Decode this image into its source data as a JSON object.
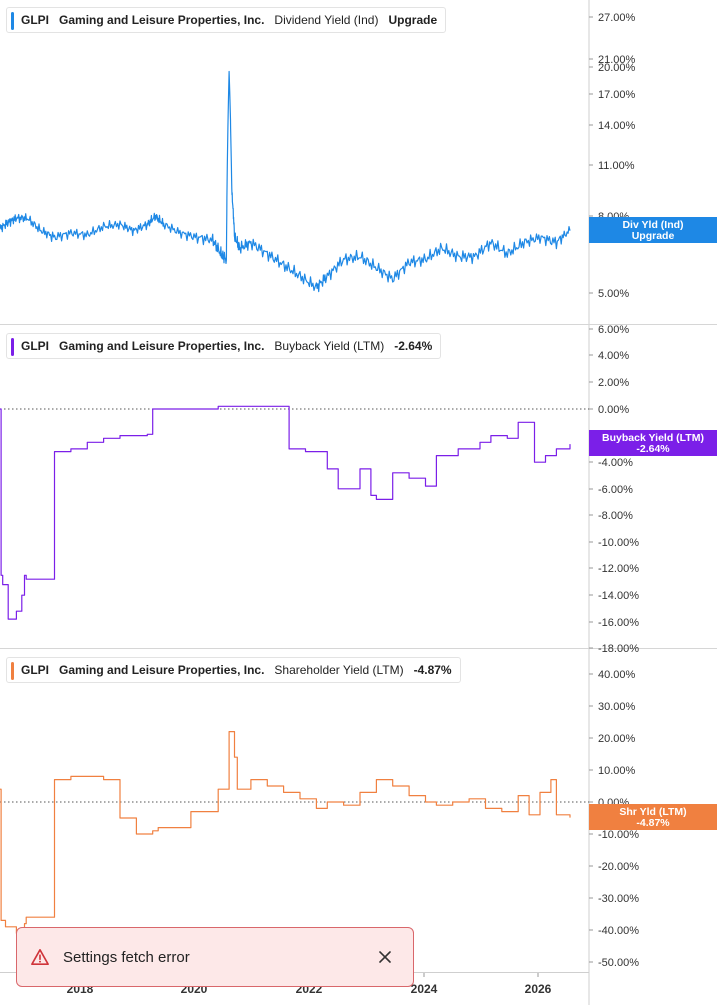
{
  "chart_data": [
    {
      "type": "line",
      "ticker": "GLPI",
      "company": "Gaming and Leisure Properties, Inc.",
      "metric": "Dividend Yield (Ind)",
      "legend_value": "Upgrade",
      "color": "#1e88e5",
      "y_ticks": [
        "27.00%",
        "21.00%",
        "20.00%",
        "17.00%",
        "14.00%",
        "11.00%",
        "8.00%",
        "7.00%",
        "5.00%"
      ],
      "tag": [
        "Div Yld (Ind)",
        "Upgrade"
      ],
      "x_range": [
        2016.0,
        2026.45
      ],
      "series": [
        {
          "x": [
            2016.0,
            2016.15,
            2016.3,
            2016.5,
            2016.75,
            2017.0,
            2017.3,
            2017.6,
            2017.9,
            2018.2,
            2018.45,
            2018.7,
            2018.85,
            2019.0,
            2019.3,
            2019.6,
            2019.9,
            2020.05,
            2020.15,
            2020.2,
            2020.25,
            2020.3,
            2020.4,
            2020.6,
            2020.9,
            2021.2,
            2021.5,
            2021.8,
            2022.0,
            2022.3,
            2022.6,
            2022.9,
            2023.2,
            2023.5,
            2023.8,
            2024.1,
            2024.4,
            2024.7,
            2025.0,
            2025.3,
            2025.6,
            2025.9,
            2026.2,
            2026.45
          ],
          "y": [
            7.4,
            7.7,
            7.9,
            7.9,
            7.3,
            7.0,
            7.2,
            7.1,
            7.5,
            7.6,
            7.3,
            7.6,
            8.0,
            7.6,
            7.2,
            7.0,
            6.9,
            6.4,
            6.2,
            19.5,
            9.5,
            7.0,
            6.6,
            6.8,
            6.4,
            6.0,
            5.6,
            5.2,
            5.6,
            6.2,
            6.3,
            5.9,
            5.5,
            6.1,
            6.2,
            6.6,
            6.3,
            6.3,
            6.8,
            6.4,
            6.8,
            7.0,
            6.8,
            7.3
          ]
        }
      ]
    },
    {
      "type": "line",
      "ticker": "GLPI",
      "company": "Gaming and Leisure Properties, Inc.",
      "metric": "Buyback Yield (LTM)",
      "legend_value": "-2.64%",
      "color": "#7b1fe8",
      "y_ticks": [
        "6.00%",
        "4.00%",
        "2.00%",
        "0.00%",
        "-4.00%",
        "-6.00%",
        "-8.00%",
        "-10.00%",
        "-12.00%",
        "-14.00%",
        "-16.00%",
        "-18.00%"
      ],
      "tag": [
        "Buyback Yield (LTM)",
        "-2.64%"
      ],
      "x_range": [
        2016.0,
        2026.45
      ],
      "series": [
        {
          "x": [
            2016.0,
            2016.02,
            2016.05,
            2016.15,
            2016.3,
            2016.4,
            2016.45,
            2016.48,
            2017.0,
            2017.3,
            2017.6,
            2017.9,
            2018.2,
            2018.5,
            2018.7,
            2018.8,
            2019.5,
            2020.0,
            2020.5,
            2021.0,
            2021.25,
            2021.3,
            2021.6,
            2022.0,
            2022.2,
            2022.6,
            2022.8,
            2022.9,
            2023.2,
            2023.5,
            2023.8,
            2024.0,
            2024.4,
            2024.8,
            2025.0,
            2025.3,
            2025.5,
            2025.8,
            2026.0,
            2026.2,
            2026.45
          ],
          "y": [
            0.0,
            -12.5,
            -13.2,
            -15.8,
            -15.2,
            -14.0,
            -12.5,
            -12.8,
            -3.2,
            -3.0,
            -2.5,
            -2.2,
            -2.0,
            -2.0,
            -1.9,
            0.0,
            0.0,
            0.2,
            0.2,
            0.2,
            0.2,
            -3.0,
            -3.2,
            -4.5,
            -6.0,
            -4.5,
            -6.5,
            -6.8,
            -4.8,
            -5.2,
            -5.8,
            -3.5,
            -3.0,
            -2.5,
            -2.0,
            -2.2,
            -1.0,
            -4.0,
            -3.5,
            -3.0,
            -2.64
          ]
        }
      ]
    },
    {
      "type": "line",
      "ticker": "GLPI",
      "company": "Gaming and Leisure Properties, Inc.",
      "metric": "Shareholder Yield (LTM)",
      "legend_value": "-4.87%",
      "color": "#f08040",
      "y_ticks": [
        "40.00%",
        "30.00%",
        "20.00%",
        "10.00%",
        "0.00%",
        "-10.00%",
        "-20.00%",
        "-30.00%",
        "-40.00%",
        "-50.00%"
      ],
      "tag": [
        "Shr Yld (LTM)",
        "-4.87%"
      ],
      "x_range": [
        2016.0,
        2026.45
      ],
      "series": [
        {
          "x": [
            2016.0,
            2016.02,
            2016.1,
            2016.3,
            2016.45,
            2016.48,
            2017.0,
            2017.3,
            2017.6,
            2017.9,
            2018.2,
            2018.5,
            2018.8,
            2018.9,
            2019.5,
            2020.0,
            2020.2,
            2020.3,
            2020.35,
            2020.6,
            2020.9,
            2021.2,
            2021.5,
            2021.8,
            2022.0,
            2022.3,
            2022.6,
            2022.9,
            2023.2,
            2023.5,
            2023.8,
            2024.0,
            2024.3,
            2024.6,
            2024.9,
            2025.2,
            2025.5,
            2025.7,
            2025.9,
            2026.1,
            2026.2,
            2026.45
          ],
          "y": [
            4,
            -37,
            -39,
            -41,
            -38,
            -36,
            7,
            8,
            8,
            7,
            -5,
            -10,
            -9,
            -8,
            -3,
            4,
            22,
            14,
            4,
            7,
            5,
            3,
            1,
            -2,
            0,
            -1,
            3,
            7,
            5,
            2,
            0,
            -1,
            0,
            1,
            -2,
            -3,
            2,
            -4,
            3,
            7,
            -4,
            -4.87
          ]
        }
      ]
    }
  ],
  "x_axis_labels": [
    "2018",
    "2020",
    "2022",
    "2024",
    "2026"
  ],
  "toast": {
    "message": "Settings fetch error"
  }
}
